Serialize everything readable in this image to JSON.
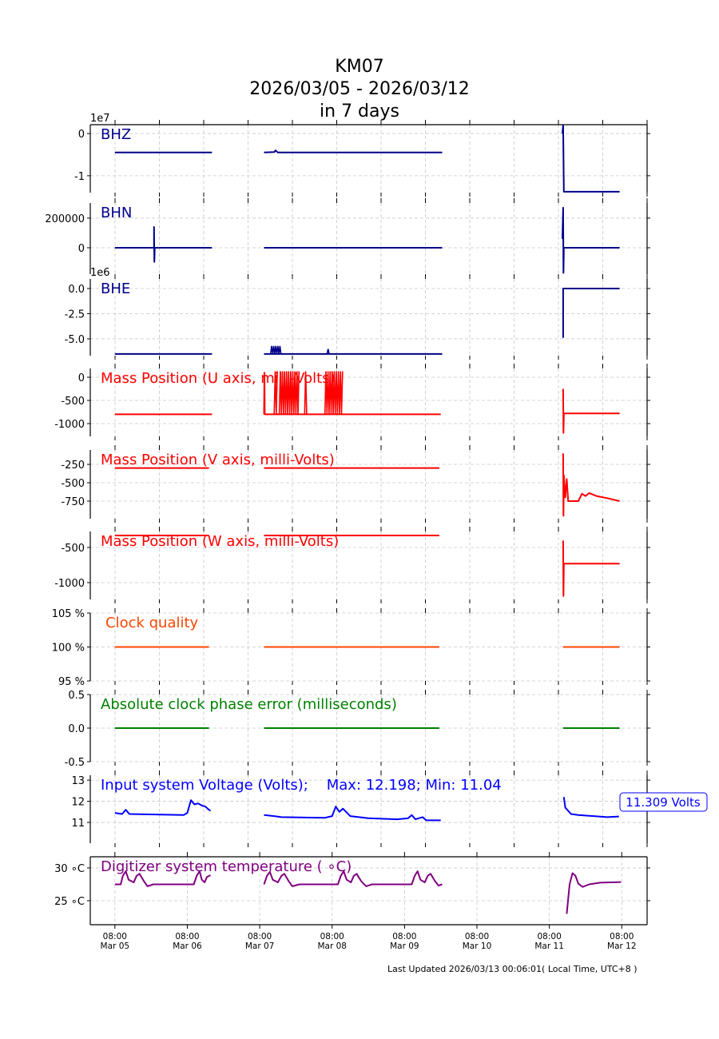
{
  "title": {
    "line1": "KM07",
    "line2": "2026/03/05 - 2026/03/12",
    "line3": "in 7 days"
  },
  "footer": "Last Updated 2026/03/13 00:06:01( Local Time, UTC+8 )",
  "chart_data": {
    "type": "line",
    "x_unit": "days since Mar 05 08:00",
    "xlim": [
      -0.34,
      7.35
    ],
    "x_ticks": [
      {
        "value": 0,
        "time": "08:00",
        "date": "Mar 05"
      },
      {
        "value": 1,
        "time": "08:00",
        "date": "Mar 06"
      },
      {
        "value": 2,
        "time": "08:00",
        "date": "Mar 07"
      },
      {
        "value": 3,
        "time": "08:00",
        "date": "Mar 08"
      },
      {
        "value": 4,
        "time": "08:00",
        "date": "Mar 09"
      },
      {
        "value": 5,
        "time": "08:00",
        "date": "Mar 10"
      },
      {
        "value": 6,
        "time": "08:00",
        "date": "Mar 11"
      },
      {
        "value": 7,
        "time": "08:00",
        "date": "Mar 12"
      }
    ],
    "grid": true,
    "panels": [
      {
        "label": "BHZ",
        "color": "#00008b",
        "offset_text": "1e7",
        "ylim": [
          -1.4,
          0.21
        ],
        "yticks": [
          {
            "v": 0,
            "t": "0"
          },
          {
            "v": -1,
            "t": "-1"
          }
        ],
        "segments": [
          [
            [
              0,
              -0.45
            ],
            [
              1.34,
              -0.45
            ]
          ],
          [
            [
              2.06,
              -0.45
            ],
            [
              2.2,
              -0.44
            ],
            [
              2.22,
              -0.4
            ],
            [
              2.25,
              -0.45
            ],
            [
              4.52,
              -0.45
            ]
          ],
          [
            [
              6.18,
              0.0
            ],
            [
              6.19,
              0.2
            ],
            [
              6.2,
              -1.38
            ],
            [
              6.97,
              -1.38
            ]
          ]
        ]
      },
      {
        "label": "BHN",
        "color": "#00008b",
        "ylim": [
          -178000,
          302000
        ],
        "yticks": [
          {
            "v": 200000,
            "t": "200000"
          },
          {
            "v": 0,
            "t": "0"
          }
        ],
        "segments": [
          [
            [
              0,
              0
            ],
            [
              0.54,
              0
            ],
            [
              0.54,
              140000
            ],
            [
              0.545,
              -95000
            ],
            [
              0.55,
              0
            ],
            [
              1.34,
              0
            ]
          ],
          [
            [
              2.06,
              0
            ],
            [
              4.52,
              0
            ]
          ],
          [
            [
              6.18,
              60000
            ],
            [
              6.19,
              270000
            ],
            [
              6.195,
              -170000
            ],
            [
              6.2,
              0
            ],
            [
              6.97,
              0
            ]
          ]
        ]
      },
      {
        "label": "BHE",
        "color": "#00008b",
        "offset_text": "1e6",
        "ylim": [
          -6.67,
          0.95
        ],
        "yticks": [
          {
            "v": 0,
            "t": "0.0"
          },
          {
            "v": -2.5,
            "t": "-2.5"
          },
          {
            "v": -5,
            "t": "-5.0"
          }
        ],
        "segments": [
          [
            [
              0,
              -6.5
            ],
            [
              1.34,
              -6.5
            ]
          ],
          [
            [
              2.06,
              -6.5
            ],
            [
              4.52,
              -6.5
            ]
          ],
          [
            [
              6.19,
              -4.9
            ],
            [
              6.19,
              0
            ],
            [
              6.97,
              0
            ]
          ]
        ],
        "bursts": [
          [
            2.15,
            2.3,
            -6.5,
            -5.7
          ],
          [
            2.93,
            2.97,
            -6.5,
            -6.0
          ]
        ]
      },
      {
        "label": "Mass Position (U axis, milli-Volts)",
        "color": "#ff0000",
        "ylim": [
          -1276,
          190
        ],
        "yticks": [
          {
            "v": 0,
            "t": "0"
          },
          {
            "v": -500,
            "t": "-500"
          },
          {
            "v": -1000,
            "t": "-1000"
          }
        ],
        "segments": [
          [
            [
              0,
              -800
            ],
            [
              1.34,
              -800
            ]
          ],
          [
            [
              2.06,
              -800
            ],
            [
              2.065,
              100
            ],
            [
              2.07,
              -800
            ],
            [
              4.5,
              -800
            ]
          ],
          [
            [
              6.19,
              -250
            ],
            [
              6.195,
              -1200
            ],
            [
              6.2,
              -780
            ],
            [
              6.97,
              -780
            ]
          ]
        ],
        "bursts": [
          [
            2.2,
            2.25,
            -800,
            130
          ],
          [
            2.27,
            2.55,
            -800,
            130
          ],
          [
            2.62,
            2.66,
            -800,
            130
          ],
          [
            2.9,
            3.15,
            -800,
            130
          ]
        ]
      },
      {
        "label": "Mass Position (V axis, milli-Volts)",
        "color": "#ff0000",
        "ylim": [
          -989,
          -54
        ],
        "yticks": [
          {
            "v": -250,
            "t": "-250"
          },
          {
            "v": -500,
            "t": "-500"
          },
          {
            "v": -750,
            "t": "-750"
          }
        ],
        "segments": [
          [
            [
              0,
              -300
            ],
            [
              1.3,
              -300
            ]
          ],
          [
            [
              2.06,
              -300
            ],
            [
              4.48,
              -300
            ]
          ],
          [
            [
              6.19,
              -100
            ],
            [
              6.195,
              -950
            ],
            [
              6.2,
              -400
            ],
            [
              6.22,
              -700
            ],
            [
              6.24,
              -450
            ],
            [
              6.26,
              -750
            ],
            [
              6.4,
              -750
            ],
            [
              6.45,
              -650
            ],
            [
              6.5,
              -680
            ],
            [
              6.55,
              -640
            ],
            [
              6.65,
              -680
            ],
            [
              6.8,
              -710
            ],
            [
              6.97,
              -750
            ]
          ]
        ]
      },
      {
        "label": "Mass Position (W axis, milli-Volts)",
        "color": "#ff0000",
        "ylim": [
          -1239,
          -273
        ],
        "yticks": [
          {
            "v": -500,
            "t": "-500"
          },
          {
            "v": -1000,
            "t": "-1000"
          }
        ],
        "segments": [
          [
            [
              0,
              -330
            ],
            [
              1.3,
              -330
            ]
          ],
          [
            [
              2.06,
              -330
            ],
            [
              4.48,
              -330
            ]
          ],
          [
            [
              6.19,
              -400
            ],
            [
              6.195,
              -1190
            ],
            [
              6.2,
              -730
            ],
            [
              6.97,
              -730
            ]
          ]
        ]
      },
      {
        "label": "Clock quality",
        "color": "#ff4500",
        "ylim": [
          95,
          105
        ],
        "yticks": [
          {
            "v": 105,
            "t": "105 %"
          },
          {
            "v": 100,
            "t": "100 %"
          },
          {
            "v": 95,
            "t": "95 %"
          }
        ],
        "segments": [
          [
            [
              0,
              100
            ],
            [
              1.3,
              100
            ]
          ],
          [
            [
              2.06,
              100
            ],
            [
              4.48,
              100
            ]
          ],
          [
            [
              6.19,
              100
            ],
            [
              6.97,
              100
            ]
          ]
        ]
      },
      {
        "label": "Absolute clock phase error (milliseconds)",
        "color": "#008000",
        "ylim": [
          -0.5,
          0.5
        ],
        "yticks": [
          {
            "v": 0.5,
            "t": "0.5"
          },
          {
            "v": 0,
            "t": "0.0"
          },
          {
            "v": -0.5,
            "t": "-0.5"
          }
        ],
        "segments": [
          [
            [
              0,
              0
            ],
            [
              1.3,
              0
            ]
          ],
          [
            [
              2.06,
              0
            ],
            [
              4.48,
              0
            ]
          ],
          [
            [
              6.19,
              0
            ],
            [
              6.97,
              0
            ]
          ]
        ]
      },
      {
        "label": "Input system Voltage (Volts);    Max: 12.198; Min: 11.04",
        "color": "#0000ff",
        "ylim": [
          10.02,
          13.23
        ],
        "yticks": [
          {
            "v": 13,
            "t": "13"
          },
          {
            "v": 12,
            "t": "12"
          },
          {
            "v": 11,
            "t": "11"
          }
        ],
        "annotation": "11.309 Volts",
        "segments": [
          [
            [
              0,
              11.45
            ],
            [
              0.1,
              11.4
            ],
            [
              0.15,
              11.6
            ],
            [
              0.2,
              11.4
            ],
            [
              0.5,
              11.38
            ],
            [
              0.95,
              11.35
            ],
            [
              1.0,
              11.45
            ],
            [
              1.05,
              12.05
            ],
            [
              1.1,
              11.85
            ],
            [
              1.15,
              11.9
            ],
            [
              1.2,
              11.8
            ],
            [
              1.25,
              11.75
            ],
            [
              1.3,
              11.6
            ],
            [
              1.32,
              11.55
            ]
          ],
          [
            [
              2.06,
              11.35
            ],
            [
              2.2,
              11.3
            ],
            [
              2.3,
              11.25
            ],
            [
              2.9,
              11.22
            ],
            [
              3.0,
              11.3
            ],
            [
              3.05,
              11.75
            ],
            [
              3.1,
              11.5
            ],
            [
              3.15,
              11.65
            ],
            [
              3.25,
              11.3
            ],
            [
              3.5,
              11.2
            ],
            [
              3.9,
              11.15
            ],
            [
              4.05,
              11.2
            ],
            [
              4.1,
              11.35
            ],
            [
              4.15,
              11.15
            ],
            [
              4.25,
              11.25
            ],
            [
              4.3,
              11.1
            ],
            [
              4.5,
              11.1
            ]
          ],
          [
            [
              6.2,
              12.2
            ],
            [
              6.22,
              11.7
            ],
            [
              6.3,
              11.4
            ],
            [
              6.4,
              11.35
            ],
            [
              6.8,
              11.25
            ],
            [
              6.96,
              11.28
            ]
          ]
        ]
      },
      {
        "label": "Digitizer system temperature ( ∘C)",
        "color": "#800080",
        "ylim": [
          21.34,
          31.7
        ],
        "yticks": [
          {
            "v": 30,
            "t": "30 ∘C"
          },
          {
            "v": 25,
            "t": "25 ∘C"
          }
        ],
        "segments": [
          [
            [
              0,
              27.5
            ],
            [
              0.08,
              27.5
            ],
            [
              0.11,
              28.8
            ],
            [
              0.15,
              29.5
            ],
            [
              0.19,
              28.2
            ],
            [
              0.26,
              27.8
            ],
            [
              0.3,
              28.8
            ],
            [
              0.34,
              29.1
            ],
            [
              0.4,
              28.0
            ],
            [
              0.45,
              27.2
            ],
            [
              0.53,
              27.5
            ],
            [
              1.09,
              27.5
            ],
            [
              1.13,
              28.8
            ],
            [
              1.17,
              29.5
            ],
            [
              1.2,
              28.2
            ],
            [
              1.24,
              27.8
            ],
            [
              1.27,
              28.6
            ],
            [
              1.32,
              28.9
            ]
          ],
          [
            [
              2.06,
              27.5
            ],
            [
              2.1,
              28.8
            ],
            [
              2.14,
              29.4
            ],
            [
              2.18,
              28.2
            ],
            [
              2.25,
              27.8
            ],
            [
              2.3,
              28.8
            ],
            [
              2.34,
              29.1
            ],
            [
              2.4,
              28.0
            ],
            [
              2.45,
              27.2
            ],
            [
              2.55,
              27.5
            ],
            [
              3.08,
              27.5
            ],
            [
              3.12,
              28.8
            ],
            [
              3.16,
              29.5
            ],
            [
              3.2,
              28.2
            ],
            [
              3.26,
              27.8
            ],
            [
              3.3,
              28.8
            ],
            [
              3.34,
              29.1
            ],
            [
              3.4,
              28.0
            ],
            [
              3.47,
              27.2
            ],
            [
              3.55,
              27.5
            ],
            [
              4.1,
              27.5
            ],
            [
              4.14,
              28.8
            ],
            [
              4.18,
              29.5
            ],
            [
              4.22,
              28.2
            ],
            [
              4.28,
              27.8
            ],
            [
              4.32,
              28.8
            ],
            [
              4.36,
              29.1
            ],
            [
              4.42,
              28.0
            ],
            [
              4.47,
              27.3
            ],
            [
              4.52,
              27.5
            ]
          ],
          [
            [
              6.24,
              23.0
            ],
            [
              6.28,
              27.5
            ],
            [
              6.32,
              29.2
            ],
            [
              6.36,
              28.8
            ],
            [
              6.4,
              27.6
            ],
            [
              6.46,
              27.1
            ],
            [
              6.55,
              27.5
            ],
            [
              6.7,
              27.75
            ],
            [
              6.99,
              27.85
            ]
          ]
        ]
      }
    ]
  }
}
